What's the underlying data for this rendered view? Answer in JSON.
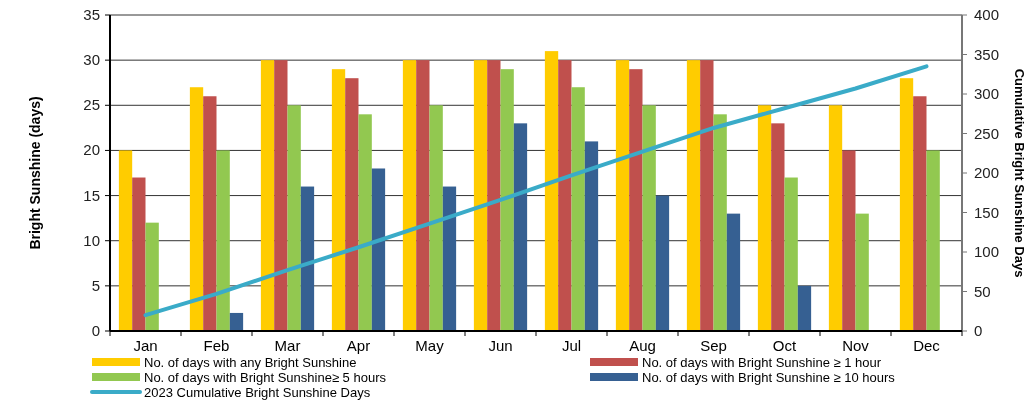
{
  "chart_data": {
    "type": "bar",
    "ylabel": "Bright Sunshine  (days)",
    "y2label": "Cumulative Bright Sunshine Days",
    "categories": [
      "Jan",
      "Feb",
      "Mar",
      "Apr",
      "May",
      "Jun",
      "Jul",
      "Aug",
      "Sep",
      "Oct",
      "Nov",
      "Dec"
    ],
    "series": [
      {
        "name": "No. of days with any Bright Sunshine",
        "color": "#ffcc00",
        "values": [
          20,
          27,
          30,
          29,
          30,
          30,
          31,
          30,
          30,
          25,
          25,
          28
        ]
      },
      {
        "name": "No. of days with Bright Sunshine ≥ 1 hour",
        "color": "#c0504d",
        "values": [
          17,
          26,
          30,
          28,
          30,
          30,
          30,
          29,
          30,
          23,
          20,
          26
        ]
      },
      {
        "name": "No. of days with Bright Sunshine≥ 5 hours",
        "color": "#92c850",
        "values": [
          12,
          20,
          25,
          24,
          25,
          29,
          27,
          25,
          24,
          17,
          13,
          20
        ]
      },
      {
        "name": "No. of days with Bright Sunshine ≥ 10 hours",
        "color": "#366092",
        "values": [
          0,
          2,
          16,
          18,
          16,
          23,
          21,
          15,
          13,
          5,
          0,
          0
        ]
      },
      {
        "name": "2023 Cumulative Bright Sunshine Days",
        "type": "line",
        "axis": "y2",
        "color": "#3aabc8",
        "values": [
          20,
          47,
          77,
          106,
          136,
          166,
          197,
          227,
          257,
          282,
          307,
          335
        ]
      }
    ],
    "ylim": [
      0,
      35
    ],
    "yticks": [
      0,
      5,
      10,
      15,
      20,
      25,
      30,
      35
    ],
    "y2lim": [
      0,
      400
    ],
    "y2ticks": [
      0,
      50,
      100,
      150,
      200,
      250,
      300,
      350,
      400
    ],
    "grid": "y",
    "legend": "bottom",
    "marker": "none",
    "line_style": "solid"
  }
}
